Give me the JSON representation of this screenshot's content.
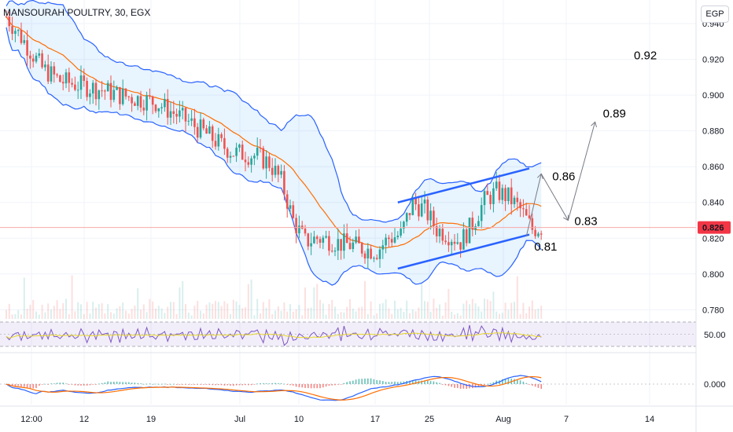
{
  "header": {
    "title": "MANSOURAH POULTRY, 30, EGX"
  },
  "currency_button": "EGP",
  "colors": {
    "up": "#26a69a",
    "down": "#ef5350",
    "band": "#2962ff",
    "band_fill": "rgba(33,150,243,0.10)",
    "ma": "#ff6d00",
    "rsi": "#7e57c2",
    "rsi_ma": "#e8d72a",
    "macd": "#2962ff",
    "signal": "#ff6d00",
    "channel": "#2962ff",
    "arrow": "#787b86",
    "price_tag": "#f23645",
    "grid": "#f0f3fa"
  },
  "chart_data": {
    "type": "candlestick",
    "title": "MANSOURAH POULTRY, 30, EGX",
    "currency": "EGP",
    "ylim": [
      0.774,
      0.951
    ],
    "y_ticks": [
      "0.940",
      "0.920",
      "0.900",
      "0.880",
      "0.860",
      "0.840",
      "0.820",
      "0.800",
      "0.780"
    ],
    "x_ticks": [
      "12:00",
      "12",
      "19",
      "Jul",
      "10",
      "17",
      "25",
      "Aug",
      "7",
      "14"
    ],
    "last_price": "0.826",
    "bars": 180,
    "price_path": [
      [
        0,
        0.944
      ],
      [
        6,
        0.93
      ],
      [
        12,
        0.915
      ],
      [
        18,
        0.908
      ],
      [
        26,
        0.905
      ],
      [
        32,
        0.903
      ],
      [
        38,
        0.9
      ],
      [
        44,
        0.898
      ],
      [
        50,
        0.896
      ],
      [
        56,
        0.89
      ],
      [
        62,
        0.884
      ],
      [
        68,
        0.877
      ],
      [
        72,
        0.872
      ],
      [
        76,
        0.868
      ],
      [
        80,
        0.867
      ],
      [
        84,
        0.866
      ],
      [
        88,
        0.862
      ],
      [
        92,
        0.852
      ],
      [
        96,
        0.83
      ],
      [
        100,
        0.818
      ],
      [
        104,
        0.82
      ],
      [
        108,
        0.819
      ],
      [
        112,
        0.817
      ],
      [
        116,
        0.816
      ],
      [
        120,
        0.814
      ],
      [
        124,
        0.813
      ],
      [
        128,
        0.82
      ],
      [
        132,
        0.822
      ],
      [
        136,
        0.84
      ],
      [
        140,
        0.836
      ],
      [
        144,
        0.825
      ],
      [
        148,
        0.822
      ],
      [
        152,
        0.818
      ],
      [
        156,
        0.828
      ],
      [
        160,
        0.841
      ],
      [
        164,
        0.846
      ],
      [
        168,
        0.843
      ],
      [
        172,
        0.836
      ],
      [
        176,
        0.825
      ],
      [
        179,
        0.826
      ]
    ],
    "series": [
      {
        "name": "Bollinger Bands",
        "values": []
      },
      {
        "name": "Moving Average",
        "values": []
      }
    ],
    "rsi": {
      "level": "50.00",
      "upper": 70,
      "lower": 30
    },
    "macd": {
      "level": "0.000"
    },
    "channel": {
      "upper": [
        [
          131,
          0.84
        ],
        [
          175,
          0.859
        ]
      ],
      "lower": [
        [
          131,
          0.803
        ],
        [
          175,
          0.822
        ]
      ]
    },
    "projection": [
      {
        "label": "0.81",
        "x": 174,
        "y": 0.821,
        "color": "#f23645"
      },
      {
        "label": "0.86",
        "x": 179,
        "y": 0.856
      },
      {
        "label": "0.83",
        "x": 188,
        "y": 0.83
      },
      {
        "label": "0.89",
        "x": 197,
        "y": 0.885
      },
      {
        "label": "0.92",
        "x": 210,
        "y": 0.92
      }
    ]
  }
}
